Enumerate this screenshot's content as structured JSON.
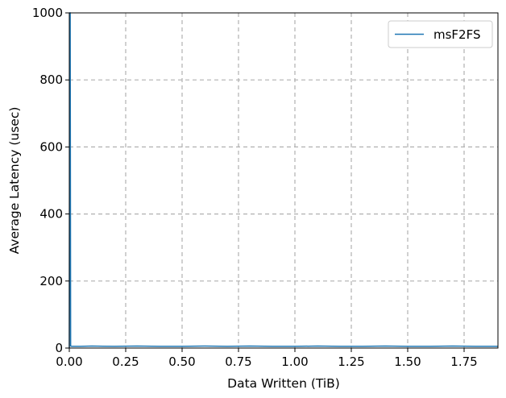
{
  "chart_data": {
    "type": "line",
    "title": "",
    "xlabel": "Data Written (TiB)",
    "ylabel": "Average Latency (usec)",
    "xlim": [
      0,
      1.9
    ],
    "ylim": [
      0,
      1000
    ],
    "x_ticks": [
      0.0,
      0.25,
      0.5,
      0.75,
      1.0,
      1.25,
      1.5,
      1.75
    ],
    "x_tick_labels": [
      "0.00",
      "0.25",
      "0.50",
      "0.75",
      "1.00",
      "1.25",
      "1.50",
      "1.75"
    ],
    "y_ticks": [
      0,
      200,
      400,
      600,
      800,
      1000
    ],
    "y_tick_labels": [
      "0",
      "200",
      "400",
      "600",
      "800",
      "1000"
    ],
    "grid": true,
    "legend_position": "top-right",
    "series": [
      {
        "name": "msF2FS",
        "color": "#1f77b4",
        "x": [
          0.0,
          0.002,
          0.004,
          0.006,
          0.01,
          0.05,
          0.1,
          0.2,
          0.3,
          0.4,
          0.5,
          0.6,
          0.7,
          0.8,
          0.9,
          1.0,
          1.1,
          1.2,
          1.3,
          1.4,
          1.5,
          1.6,
          1.7,
          1.8,
          1.9
        ],
        "values": [
          0,
          1000,
          1000,
          6,
          5,
          5,
          6,
          5,
          6,
          5,
          5,
          6,
          5,
          6,
          5,
          5,
          6,
          5,
          5,
          6,
          5,
          5,
          6,
          5,
          5
        ]
      }
    ]
  }
}
